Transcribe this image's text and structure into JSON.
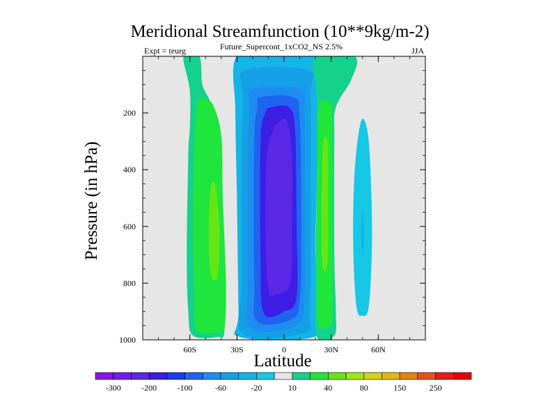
{
  "chart_data": {
    "type": "heatmap",
    "title": "Meridional Streamfunction (10**9kg/m-2)",
    "subtitle": "Future_Supercont_1xCO2_NS 2.5%",
    "left_annotation": "Expt = teurg",
    "right_annotation": "JJA",
    "xlabel": "Latitude",
    "ylabel": "Pressure (in hPa)",
    "x_range": [
      -90,
      90
    ],
    "y_range": [
      1000,
      0
    ],
    "y_reversed": true,
    "x_ticks": [
      {
        "value": -60,
        "label": "60S"
      },
      {
        "value": -30,
        "label": "30S"
      },
      {
        "value": 0,
        "label": "0"
      },
      {
        "value": 30,
        "label": "30N"
      },
      {
        "value": 60,
        "label": "60N"
      }
    ],
    "y_ticks": [
      {
        "value": 200,
        "label": "200"
      },
      {
        "value": 400,
        "label": "400"
      },
      {
        "value": 600,
        "label": "600"
      },
      {
        "value": 800,
        "label": "800"
      },
      {
        "value": 1000,
        "label": "1000"
      }
    ],
    "background_color": "#e6e6e6",
    "colorbar": {
      "levels": [
        -300,
        -250,
        -200,
        -150,
        -100,
        -80,
        -60,
        -40,
        -20,
        -10,
        10,
        20,
        40,
        60,
        80,
        100,
        150,
        200,
        250,
        300
      ],
      "labels": [
        {
          "level": -300,
          "label": "-300"
        },
        {
          "level": -200,
          "label": "-200"
        },
        {
          "level": -100,
          "label": "-100"
        },
        {
          "level": -60,
          "label": "-60"
        },
        {
          "level": -20,
          "label": "-20"
        },
        {
          "level": 10,
          "label": "10"
        },
        {
          "level": 40,
          "label": "40"
        },
        {
          "level": 80,
          "label": "80"
        },
        {
          "level": 150,
          "label": "150"
        },
        {
          "level": 250,
          "label": "250"
        }
      ],
      "colors": [
        "#8a14e6",
        "#6e1ee6",
        "#5a28e6",
        "#3c1ee6",
        "#1e3cf0",
        "#1e64f0",
        "#1e8cf0",
        "#14a0e6",
        "#14b4e6",
        "#14c8e6",
        "#e6e6e6",
        "#14d28c",
        "#1ee63c",
        "#64e614",
        "#a0e614",
        "#d2d214",
        "#e6b414",
        "#e68214",
        "#e6501e",
        "#e61e14",
        "#e60000"
      ]
    },
    "contours": [
      {
        "value": 10,
        "color": "#14d28c",
        "points": [
          [
            -64,
            0
          ],
          [
            -54,
            0
          ],
          [
            -52,
            100
          ],
          [
            -47,
            160
          ],
          [
            -42,
            260
          ],
          [
            -40,
            500
          ],
          [
            -38,
            800
          ],
          [
            -38,
            970
          ],
          [
            -42,
            990
          ],
          [
            -58,
            985
          ],
          [
            -61,
            900
          ],
          [
            -62,
            700
          ],
          [
            -61,
            350
          ],
          [
            -60,
            250
          ],
          [
            -60,
            120
          ]
        ]
      },
      {
        "value": 20,
        "color": "#1ee63c",
        "points": [
          [
            -50,
            150
          ],
          [
            -45,
            175
          ],
          [
            -40,
            280
          ],
          [
            -39,
            500
          ],
          [
            -37,
            800
          ],
          [
            -38,
            960
          ],
          [
            -43,
            975
          ],
          [
            -56,
            965
          ],
          [
            -57,
            850
          ],
          [
            -58,
            600
          ],
          [
            -57,
            300
          ],
          [
            -56,
            200
          ],
          [
            -54,
            150
          ]
        ]
      },
      {
        "value": 40,
        "color": "#64e614",
        "points": [
          [
            -45,
            440
          ],
          [
            -43,
            480
          ],
          [
            -41,
            620
          ],
          [
            -42,
            760
          ],
          [
            -44,
            790
          ],
          [
            -47,
            760
          ],
          [
            -48,
            620
          ],
          [
            -47,
            480
          ]
        ]
      },
      {
        "value": -10,
        "color": "#14b4e6",
        "points": [
          [
            -30,
            0
          ],
          [
            -2,
            0
          ],
          [
            2,
            0
          ],
          [
            20,
            0
          ],
          [
            21,
            100
          ],
          [
            21,
            400
          ],
          [
            20,
            700
          ],
          [
            21,
            900
          ],
          [
            19,
            990
          ],
          [
            -28,
            990
          ],
          [
            -29,
            900
          ],
          [
            -30,
            500
          ],
          [
            -31,
            200
          ]
        ]
      },
      {
        "value": -20,
        "color": "#14a0e6",
        "points": [
          [
            -25,
            50
          ],
          [
            15,
            50
          ],
          [
            17,
            150
          ],
          [
            17,
            500
          ],
          [
            17,
            700
          ],
          [
            16,
            900
          ],
          [
            13,
            975
          ],
          [
            -26,
            980
          ],
          [
            -27,
            800
          ],
          [
            -27,
            400
          ],
          [
            -26,
            150
          ]
        ]
      },
      {
        "value": -40,
        "color": "#1e8cf0",
        "points": [
          [
            -20,
            115
          ],
          [
            10,
            115
          ],
          [
            13,
            200
          ],
          [
            13,
            600
          ],
          [
            13,
            850
          ],
          [
            8,
            950
          ],
          [
            -21,
            960
          ],
          [
            -23,
            800
          ],
          [
            -23,
            400
          ],
          [
            -22,
            200
          ]
        ]
      },
      {
        "value": -60,
        "color": "#1e64f0",
        "points": [
          [
            -15,
            145
          ],
          [
            6,
            145
          ],
          [
            10,
            220
          ],
          [
            11,
            600
          ],
          [
            10,
            860
          ],
          [
            4,
            930
          ],
          [
            -17,
            935
          ],
          [
            -19,
            800
          ],
          [
            -19,
            300
          ],
          [
            -17,
            180
          ]
        ]
      },
      {
        "value": -80,
        "color": "#3c1ee6",
        "points": [
          [
            -8,
            180
          ],
          [
            3,
            180
          ],
          [
            7,
            260
          ],
          [
            8,
            600
          ],
          [
            8,
            850
          ],
          [
            0,
            900
          ],
          [
            -13,
            905
          ],
          [
            -15,
            700
          ],
          [
            -15,
            300
          ],
          [
            -12,
            200
          ]
        ]
      },
      {
        "value": -100,
        "color": "#5a28e6",
        "points": [
          [
            -3,
            230
          ],
          [
            2,
            230
          ],
          [
            5,
            350
          ],
          [
            5,
            600
          ],
          [
            4,
            800
          ],
          [
            -5,
            840
          ],
          [
            -10,
            820
          ],
          [
            -12,
            600
          ],
          [
            -11,
            350
          ],
          [
            -7,
            260
          ]
        ]
      },
      {
        "value": 10,
        "color": "#14d28c",
        "points": [
          [
            20,
            0
          ],
          [
            45,
            0
          ],
          [
            43,
            80
          ],
          [
            33,
            180
          ],
          [
            32,
            300
          ],
          [
            32,
            700
          ],
          [
            33,
            900
          ],
          [
            32,
            985
          ],
          [
            21,
            990
          ],
          [
            20,
            800
          ],
          [
            21,
            400
          ],
          [
            21,
            150
          ]
        ]
      },
      {
        "value": 20,
        "color": "#1ee63c",
        "points": [
          [
            22,
            180
          ],
          [
            30,
            170
          ],
          [
            31,
            300
          ],
          [
            31,
            700
          ],
          [
            31,
            900
          ],
          [
            30,
            945
          ],
          [
            22,
            950
          ],
          [
            21,
            800
          ],
          [
            21,
            400
          ]
        ]
      },
      {
        "value": 40,
        "color": "#64e614",
        "points": [
          [
            25,
            300
          ],
          [
            28,
            310
          ],
          [
            28,
            500
          ],
          [
            28,
            700
          ],
          [
            26,
            760
          ],
          [
            24,
            700
          ],
          [
            24,
            450
          ]
        ]
      },
      {
        "value": -20,
        "color": "#14c8e6",
        "points": [
          [
            49,
            230
          ],
          [
            53,
            260
          ],
          [
            55,
            400
          ],
          [
            56,
            650
          ],
          [
            54,
            880
          ],
          [
            50,
            915
          ],
          [
            46,
            880
          ],
          [
            44,
            650
          ],
          [
            45,
            400
          ]
        ]
      },
      {
        "value": -40,
        "color": "#14b4e6",
        "points": [
          [
            50,
            540
          ],
          [
            51,
            580
          ],
          [
            51,
            650
          ],
          [
            50,
            700
          ],
          [
            49,
            640
          ],
          [
            49,
            580
          ]
        ]
      }
    ]
  }
}
